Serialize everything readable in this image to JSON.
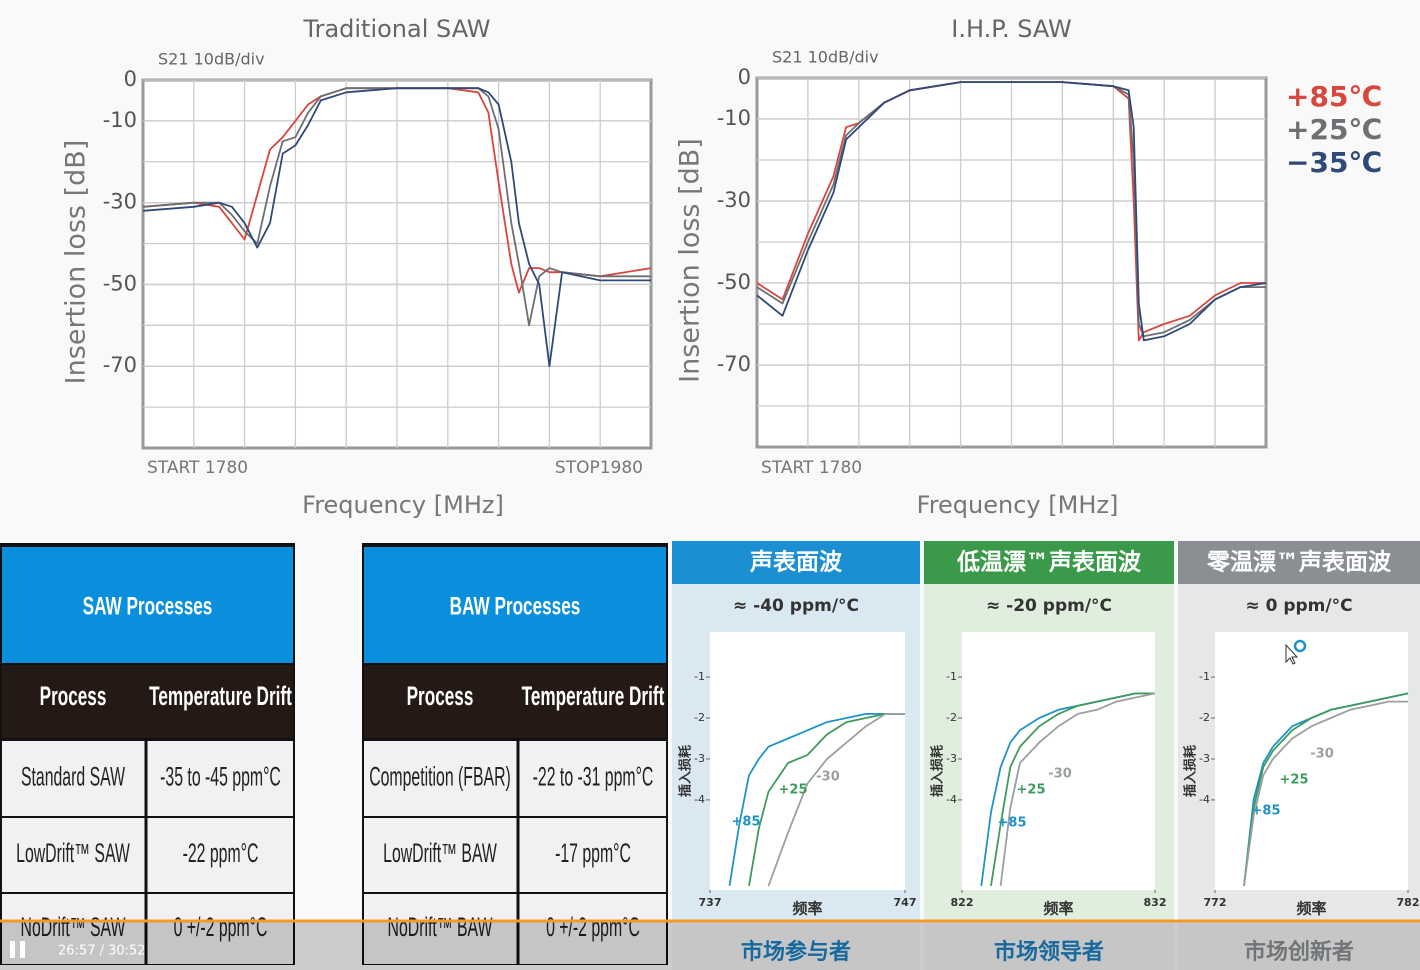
{
  "chart_data": [
    {
      "type": "line",
      "title": "Traditional SAW",
      "subtitle": "S21 10dB/div",
      "x_label": "Frequency [MHz]",
      "y_label": "Insertion loss [dB]",
      "start_label": "START 1780",
      "stop_label": "STOP1980",
      "x": [
        1780,
        1800,
        1810,
        1815,
        1820,
        1825,
        1830,
        1835,
        1840,
        1845,
        1850,
        1860,
        1880,
        1900,
        1912,
        1916,
        1920,
        1925,
        1928,
        1932,
        1936,
        1940,
        1945,
        1960,
        1980
      ],
      "series": [
        {
          "color": "#d9463e",
          "values": [
            -31,
            -30,
            -31,
            -35,
            -39,
            -28,
            -17,
            -14,
            -10,
            -6,
            -4,
            -2,
            -2,
            -2,
            -3,
            -8,
            -25,
            -45,
            -52,
            -46,
            -46,
            -47,
            -47,
            -48,
            -46
          ]
        },
        {
          "color": "#6d6f72",
          "values": [
            -31,
            -30,
            -30,
            -33,
            -37,
            -40,
            -26,
            -15,
            -14,
            -8,
            -4,
            -2,
            -2,
            -2,
            -2,
            -4,
            -12,
            -35,
            -45,
            -60,
            -48,
            -46,
            -47,
            -48,
            -48
          ]
        },
        {
          "color": "#2f4a78",
          "values": [
            -32,
            -31,
            -30,
            -31,
            -35,
            -41,
            -35,
            -18,
            -16,
            -11,
            -5,
            -3,
            -2,
            -2,
            -2,
            -3,
            -6,
            -20,
            -35,
            -45,
            -50,
            -70,
            -47,
            -49,
            -49
          ]
        }
      ],
      "xlim": [
        1780,
        1980
      ],
      "ylim": [
        -90,
        0
      ],
      "yticks": [
        0,
        -10,
        -30,
        -50,
        -70
      ],
      "grid": true
    },
    {
      "type": "line",
      "title": "I.H.P. SAW",
      "subtitle": "S21 10dB/div",
      "x_label": "Frequency [MHz]",
      "y_label": "Insertion loss [dB]",
      "start_label": "START 1780",
      "x": [
        1780,
        1790,
        1800,
        1810,
        1815,
        1820,
        1830,
        1840,
        1860,
        1900,
        1920,
        1926,
        1928,
        1930,
        1932,
        1940,
        1950,
        1960,
        1970,
        1980
      ],
      "series": [
        {
          "name": "+85℃",
          "color": "#d9463e",
          "values": [
            -50,
            -54,
            -38,
            -24,
            -12,
            -11,
            -6,
            -3,
            -1,
            -1,
            -2,
            -5,
            -30,
            -64,
            -62,
            -60,
            -58,
            -53,
            -50,
            -50
          ]
        },
        {
          "name": "+25℃",
          "color": "#6d6f72",
          "values": [
            -51,
            -55,
            -40,
            -26,
            -14,
            -11,
            -6,
            -3,
            -1,
            -1,
            -2,
            -4,
            -20,
            -60,
            -63,
            -62,
            -59,
            -54,
            -51,
            -51
          ]
        },
        {
          "name": "−35℃",
          "color": "#2f4a78",
          "values": [
            -53,
            -58,
            -42,
            -28,
            -15,
            -12,
            -6,
            -3,
            -1,
            -1,
            -2,
            -3,
            -12,
            -55,
            -64,
            -63,
            -60,
            -54,
            -51,
            -50
          ]
        }
      ],
      "xlim": [
        1780,
        1980
      ],
      "ylim": [
        -90,
        0
      ],
      "yticks": [
        0,
        -10,
        -30,
        -50,
        -70
      ],
      "grid": true,
      "legend": "right"
    },
    {
      "type": "line",
      "title": "声表面波",
      "subtitle": "≈ -40 ppm/°C",
      "caption": "市场参与者",
      "x_label": "频率",
      "y_label": "插入损耗",
      "header_color": "#1b8fd2",
      "panel_color": "#dae8f2",
      "caption_color": "#1b7fc0",
      "x": [
        738,
        738.5,
        739,
        739.5,
        740,
        741,
        742,
        743,
        744,
        745,
        746,
        747
      ],
      "series": [
        {
          "name": "+85",
          "color": "#1f93c9",
          "values": [
            -6.1,
            -4.6,
            -3.4,
            -3.0,
            -2.7,
            -2.5,
            -2.3,
            -2.1,
            -2.0,
            -1.9,
            -1.9,
            -1.9
          ]
        },
        {
          "name": "+25",
          "color": "#3f9a5c",
          "values": [
            null,
            null,
            -6.1,
            -4.7,
            -3.8,
            -3.1,
            -2.9,
            -2.4,
            -2.1,
            -2.0,
            -1.9,
            -1.9
          ]
        },
        {
          "name": "-30",
          "color": "#9aa0a0",
          "values": [
            null,
            null,
            null,
            null,
            -6.1,
            -4.8,
            -3.6,
            -3.0,
            -2.6,
            -2.2,
            -1.9,
            -1.9
          ]
        }
      ],
      "xlim": [
        737,
        747
      ],
      "ylim": [
        -6.2,
        0.1
      ],
      "xticks": [
        737,
        747
      ],
      "yticks": [
        -1,
        -2,
        -3,
        -4
      ]
    },
    {
      "type": "line",
      "title": "低温漂™声表面波",
      "subtitle": "≈ -20 ppm/°C",
      "caption": "市场领导者",
      "x_label": "频率",
      "y_label": "插入损耗",
      "header_color": "#3a9a4a",
      "panel_color": "#dfeedd",
      "caption_color": "#1b7fc0",
      "x": [
        823,
        823.5,
        824,
        824.5,
        825,
        826,
        827,
        828,
        829,
        830,
        831,
        832
      ],
      "series": [
        {
          "name": "+85",
          "color": "#1f93c9",
          "values": [
            -6.1,
            -4.3,
            -3.2,
            -2.6,
            -2.3,
            -2.0,
            -1.8,
            -1.7,
            -1.6,
            -1.5,
            -1.4,
            -1.4
          ]
        },
        {
          "name": "+25",
          "color": "#3f9a5c",
          "values": [
            null,
            -6.1,
            -4.6,
            -3.2,
            -2.7,
            -2.2,
            -1.9,
            -1.7,
            -1.6,
            -1.5,
            -1.4,
            -1.4
          ]
        },
        {
          "name": "-30",
          "color": "#9aa0a0",
          "values": [
            null,
            null,
            -6.1,
            -4.2,
            -3.1,
            -2.6,
            -2.2,
            -1.9,
            -1.8,
            -1.6,
            -1.5,
            -1.4
          ]
        }
      ],
      "xlim": [
        822,
        832
      ],
      "ylim": [
        -6.2,
        0.1
      ],
      "xticks": [
        822,
        832
      ],
      "yticks": [
        -1,
        -2,
        -3,
        -4
      ]
    },
    {
      "type": "line",
      "title": "零温漂™声表面波",
      "subtitle": "≈ 0 ppm/°C",
      "caption": "市场创新者",
      "x_label": "频率",
      "y_label": "插入损耗",
      "header_color": "#8b8f93",
      "panel_color": "#e6e7e8",
      "caption_color": "#8b8f93",
      "x": [
        773.5,
        774,
        774.5,
        775,
        776,
        777,
        778,
        779,
        780,
        781,
        782
      ],
      "series": [
        {
          "name": "+85",
          "color": "#1f93c9",
          "values": [
            -6.1,
            -4.0,
            -3.1,
            -2.7,
            -2.2,
            -2.0,
            -1.8,
            -1.7,
            -1.6,
            -1.5,
            -1.4
          ]
        },
        {
          "name": "+25",
          "color": "#3f9a5c",
          "values": [
            -6.1,
            -4.2,
            -3.2,
            -2.8,
            -2.3,
            -2.0,
            -1.8,
            -1.7,
            -1.6,
            -1.5,
            -1.4
          ]
        },
        {
          "name": "-30",
          "color": "#9aa0a0",
          "values": [
            -6.1,
            -4.4,
            -3.4,
            -3.0,
            -2.5,
            -2.2,
            -2.0,
            -1.8,
            -1.7,
            -1.6,
            -1.6
          ]
        }
      ],
      "xlim": [
        772,
        782
      ],
      "ylim": [
        -6.2,
        0.1
      ],
      "xticks": [
        772,
        782
      ],
      "yticks": [
        -1,
        -2,
        -3,
        -4
      ]
    }
  ],
  "tables": [
    {
      "title": "SAW Processes",
      "columns": [
        "Process",
        "Temperature Drift"
      ],
      "rows": [
        [
          "Standard SAW",
          "-35 to -45 ppm°C"
        ],
        [
          "LowDrift™ SAW",
          "-22 ppm°C"
        ],
        [
          "NoDrift™ SAW",
          "0 +/-2 ppm°C"
        ]
      ]
    },
    {
      "title": "BAW Processes",
      "columns": [
        "Process",
        "Temperature Drift"
      ],
      "rows": [
        [
          "Competition (FBAR)",
          "-22 to -31 ppm°C"
        ],
        [
          "LowDrift™ BAW",
          "-17 ppm°C"
        ],
        [
          "NoDrift™ BAW",
          "0 +/-2 ppm°C"
        ]
      ]
    }
  ],
  "player": {
    "time": "26:57 / 30:52"
  }
}
